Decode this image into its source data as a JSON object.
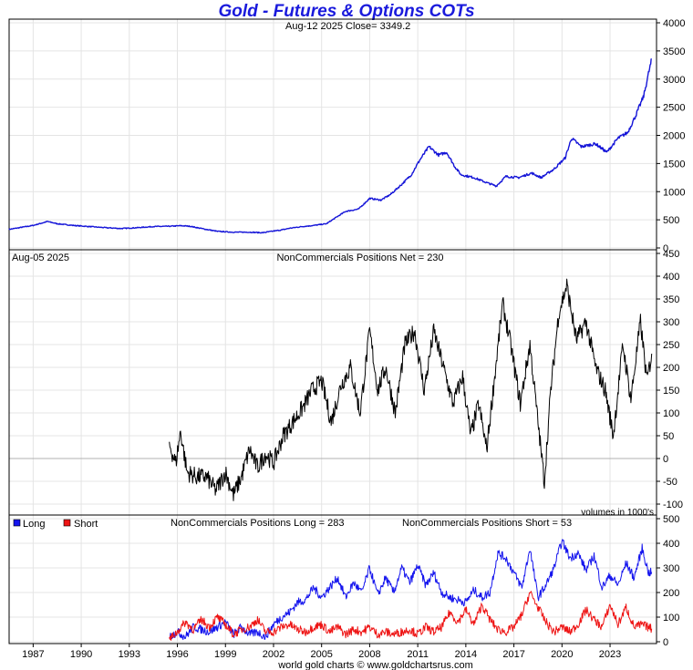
{
  "title": "Gold - Futures & Options COTs",
  "footer": "world gold charts © www.goldchartsrus.com",
  "colors": {
    "title": "#1a1adc",
    "price": "#1515d8",
    "net": "#000000",
    "long": "#1515ee",
    "short": "#ee1515",
    "grid": "#e4e4e4"
  },
  "chart_data": [
    {
      "type": "line",
      "panel": "price",
      "header_left": "Aug-12  2025   Close= 3349.2",
      "ylim": [
        0,
        4000
      ],
      "yticks": [
        "0",
        "500",
        "1000",
        "1500",
        "2000",
        "2500",
        "3000",
        "3500",
        "4000"
      ],
      "series": [
        {
          "x": [
            1985.5,
            1987,
            1987.9,
            1988.5,
            1989.5,
            1990.5,
            1991.5,
            1992.5,
            1993.5,
            1994.5,
            1995.5,
            1996.2,
            1996.8,
            1997.5,
            1998.5,
            1999.5,
            2000.5,
            2001.3,
            2002,
            2002.5,
            2003,
            2003.8,
            2004.5,
            2005.3,
            2006,
            2006.5,
            2007.3,
            2008,
            2008.7,
            2009.3,
            2010,
            2010.6,
            2011.1,
            2011.7,
            2012.3,
            2012.8,
            2013.3,
            2013.7,
            2014.5,
            2015.3,
            2015.9,
            2016.5,
            2017.3,
            2018.1,
            2018.7,
            2019.5,
            2020.2,
            2020.6,
            2021.2,
            2022.1,
            2022.8,
            2023.5,
            2024.1,
            2024.6,
            2025.1,
            2025.4,
            2025.6
          ],
          "values": [
            330,
            400,
            470,
            430,
            400,
            380,
            360,
            345,
            360,
            380,
            385,
            395,
            385,
            345,
            295,
            280,
            280,
            270,
            300,
            320,
            350,
            380,
            400,
            430,
            560,
            650,
            690,
            880,
            850,
            950,
            1130,
            1300,
            1550,
            1800,
            1650,
            1700,
            1450,
            1300,
            1250,
            1160,
            1100,
            1270,
            1250,
            1330,
            1250,
            1400,
            1600,
            1950,
            1800,
            1850,
            1700,
            1950,
            2050,
            2350,
            2700,
            3100,
            3349
          ]
        }
      ]
    },
    {
      "type": "line",
      "panel": "net",
      "header_left": "Aug-05  2025",
      "header_center": "NonCommercials Positions Net = 230",
      "note": "volumes in 1000's",
      "ylim": [
        -120,
        450
      ],
      "yticks": [
        "-100",
        "-50",
        "0",
        "50",
        "100",
        "150",
        "200",
        "250",
        "300",
        "350",
        "400",
        "450"
      ],
      "series": [
        {
          "x": [
            1995.5,
            1995.9,
            1996.2,
            1996.6,
            1997.2,
            1997.8,
            1998.4,
            1999,
            1999.5,
            2000,
            2000.5,
            2001,
            2001.5,
            2002,
            2002.6,
            2003.2,
            2003.8,
            2004.4,
            2005,
            2005.6,
            2006.2,
            2006.8,
            2007.4,
            2008,
            2008.5,
            2009,
            2009.6,
            2010.2,
            2010.8,
            2011.4,
            2012,
            2012.6,
            2013.2,
            2013.8,
            2014.3,
            2014.8,
            2015.3,
            2015.8,
            2016.3,
            2016.8,
            2017.4,
            2018,
            2018.5,
            2018.9,
            2019.3,
            2019.8,
            2020.3,
            2020.9,
            2021.5,
            2022.1,
            2022.7,
            2023.2,
            2023.8,
            2024.3,
            2024.9,
            2025.3,
            2025.6
          ],
          "values": [
            30,
            -10,
            60,
            -30,
            -40,
            -40,
            -70,
            -30,
            -80,
            -40,
            20,
            -20,
            10,
            -10,
            50,
            80,
            110,
            150,
            170,
            80,
            160,
            200,
            100,
            280,
            150,
            200,
            100,
            250,
            280,
            150,
            280,
            200,
            120,
            180,
            50,
            120,
            20,
            180,
            340,
            250,
            120,
            250,
            80,
            -50,
            150,
            320,
            380,
            260,
            300,
            200,
            150,
            50,
            250,
            130,
            300,
            170,
            230
          ]
        }
      ]
    },
    {
      "type": "line",
      "panel": "positions",
      "legend": [
        "Long",
        "Short"
      ],
      "header_long": "NonCommercials Positions Long = 283",
      "header_short": "NonCommercials Positions Short = 53",
      "ylim": [
        0,
        500
      ],
      "yticks": [
        "0",
        "100",
        "200",
        "300",
        "400",
        "500"
      ],
      "xticks": [
        "1987",
        "1990",
        "1993",
        "1996",
        "1999",
        "2002",
        "2005",
        "2008",
        "2011",
        "2014",
        "2017",
        "2020",
        "2023"
      ],
      "series": [
        {
          "name": "Long",
          "x": [
            1995.5,
            1996,
            1996.5,
            1997,
            1998,
            1999,
            1999.5,
            2000,
            2000.5,
            2001,
            2001.5,
            2002,
            2002.5,
            2003,
            2003.5,
            2004,
            2004.5,
            2005,
            2005.5,
            2006,
            2006.5,
            2007,
            2007.5,
            2008,
            2008.5,
            2009,
            2009.5,
            2010,
            2010.5,
            2011,
            2011.5,
            2012,
            2012.5,
            2013,
            2013.5,
            2014,
            2014.5,
            2015,
            2015.5,
            2016,
            2016.5,
            2017,
            2017.5,
            2018,
            2018.5,
            2019,
            2019.5,
            2020,
            2020.5,
            2021,
            2021.5,
            2022,
            2022.5,
            2023,
            2023.5,
            2024,
            2024.5,
            2025,
            2025.4,
            2025.6
          ],
          "values": [
            20,
            40,
            20,
            60,
            40,
            80,
            30,
            60,
            30,
            40,
            20,
            70,
            100,
            120,
            160,
            170,
            220,
            180,
            220,
            260,
            180,
            240,
            200,
            300,
            190,
            260,
            200,
            300,
            240,
            310,
            230,
            280,
            200,
            180,
            170,
            160,
            210,
            180,
            200,
            360,
            340,
            280,
            220,
            380,
            180,
            230,
            300,
            410,
            340,
            360,
            290,
            350,
            220,
            270,
            230,
            320,
            260,
            380,
            280,
            283
          ]
        },
        {
          "name": "Short",
          "x": [
            1995.5,
            1996,
            1996.5,
            1997,
            1997.5,
            1998,
            1998.5,
            1999,
            1999.5,
            2000,
            2000.5,
            2001,
            2001.5,
            2002,
            2002.5,
            2003,
            2003.5,
            2004,
            2004.5,
            2005,
            2005.5,
            2006,
            2006.5,
            2007,
            2007.5,
            2008,
            2008.5,
            2009,
            2009.5,
            2010,
            2010.5,
            2011,
            2011.5,
            2012,
            2012.5,
            2013,
            2013.5,
            2014,
            2014.5,
            2015,
            2015.5,
            2016,
            2016.5,
            2017,
            2017.5,
            2018,
            2018.5,
            2019,
            2019.5,
            2020,
            2020.5,
            2021,
            2021.5,
            2022,
            2022.5,
            2023,
            2023.5,
            2024,
            2024.5,
            2025,
            2025.6
          ],
          "values": [
            10,
            40,
            80,
            50,
            90,
            60,
            100,
            70,
            30,
            50,
            60,
            90,
            40,
            40,
            60,
            70,
            50,
            40,
            60,
            70,
            40,
            60,
            30,
            50,
            40,
            60,
            30,
            40,
            30,
            40,
            50,
            30,
            60,
            40,
            60,
            120,
            80,
            130,
            70,
            150,
            90,
            50,
            40,
            60,
            110,
            200,
            140,
            80,
            40,
            60,
            40,
            70,
            130,
            90,
            60,
            150,
            70,
            140,
            60,
            70,
            53
          ]
        }
      ]
    }
  ]
}
